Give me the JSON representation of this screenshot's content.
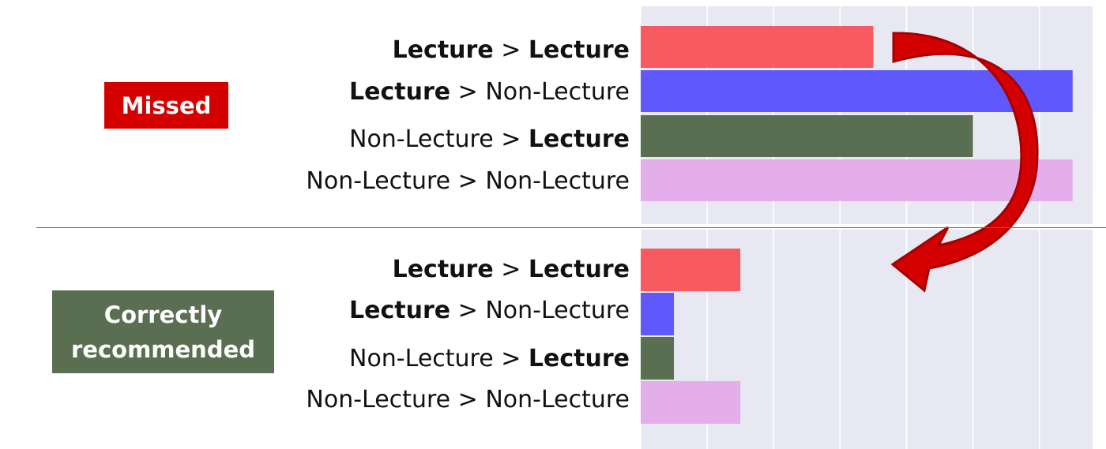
{
  "colors": {
    "lecture_lecture": "#f85b5f",
    "lecture_nonlecture": "#5e58fd",
    "nonlecture_lecture": "#5a6f52",
    "nonlecture_nonlecture": "#e3aeea",
    "panel_background": "#e8e8f2",
    "arrow": "#d40000",
    "missed_badge": "#d40000",
    "correct_badge": "#5a6f52"
  },
  "panels": [
    {
      "badge": "Missed",
      "key": "missed"
    },
    {
      "badge_lines": [
        "Correctly",
        "recommended"
      ],
      "key": "correct"
    }
  ],
  "category_labels": [
    {
      "from": "Lecture",
      "sep": " > ",
      "to": "Lecture",
      "from_bold": true,
      "to_bold": true
    },
    {
      "from": "Lecture",
      "sep": " > ",
      "to": "Non-Lecture",
      "from_bold": true,
      "to_bold": false
    },
    {
      "from": "Non-Lecture",
      "sep": " > ",
      "to": "Lecture",
      "from_bold": false,
      "to_bold": true
    },
    {
      "from": "Non-Lecture",
      "sep": " > ",
      "to": "Non-Lecture",
      "from_bold": false,
      "to_bold": false
    }
  ],
  "chart_data": [
    {
      "type": "bar",
      "orientation": "horizontal",
      "panel": "Missed",
      "categories": [
        "Lecture > Lecture",
        "Lecture > Non-Lecture",
        "Non-Lecture > Lecture",
        "Non-Lecture > Non-Lecture"
      ],
      "values": [
        3.5,
        6.5,
        5.0,
        6.5
      ],
      "xlim": [
        0,
        6.8
      ],
      "grid": true,
      "tick_labels_shown": false
    },
    {
      "type": "bar",
      "orientation": "horizontal",
      "panel": "Correctly recommended",
      "categories": [
        "Lecture > Lecture",
        "Lecture > Non-Lecture",
        "Non-Lecture > Lecture",
        "Non-Lecture > Non-Lecture"
      ],
      "values": [
        1.5,
        0.5,
        0.5,
        1.5
      ],
      "xlim": [
        0,
        6.8
      ],
      "grid": true,
      "tick_labels_shown": false
    }
  ]
}
